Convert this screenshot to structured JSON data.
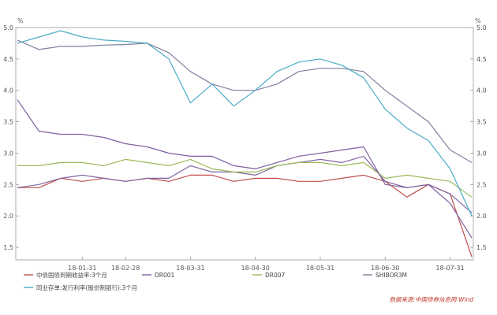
{
  "chart_data": {
    "type": "line",
    "title": "",
    "xlabel": "",
    "ylabel": "",
    "y_unit_left": "%",
    "y_unit_right": "%",
    "ylim": [
      1.3,
      5.0
    ],
    "yticks": [
      "5.0",
      "4.5",
      "4.0",
      "3.5",
      "3.0",
      "2.5",
      "2.0",
      "1.5"
    ],
    "x_tick_labels": [
      "18-01-31",
      "18-02-28",
      "18-03-31",
      "18-04-30",
      "18-05-31",
      "18-06-30",
      "18-07-31"
    ],
    "x": [
      "18-01-02",
      "18-01-10",
      "18-01-20",
      "18-01-31",
      "18-02-10",
      "18-02-28",
      "18-03-10",
      "18-03-20",
      "18-03-31",
      "18-04-10",
      "18-04-20",
      "18-04-30",
      "18-05-10",
      "18-05-20",
      "18-05-31",
      "18-06-10",
      "18-06-20",
      "18-06-30",
      "18-07-10",
      "18-07-20",
      "18-07-31",
      "18-08-10"
    ],
    "series": [
      {
        "name": "中债国债到期收益率:3个月",
        "color": "#c0504d",
        "values": [
          2.45,
          2.45,
          2.6,
          2.55,
          2.6,
          2.55,
          2.6,
          2.55,
          2.65,
          2.65,
          2.55,
          2.6,
          2.6,
          2.55,
          2.55,
          2.6,
          2.65,
          2.55,
          2.3,
          2.5,
          2.35,
          1.35
        ]
      },
      {
        "name": "DR001",
        "color": "#8064a2",
        "values": [
          2.45,
          2.5,
          2.6,
          2.65,
          2.6,
          2.55,
          2.6,
          2.6,
          2.8,
          2.7,
          2.7,
          2.65,
          2.8,
          2.85,
          2.9,
          2.85,
          2.95,
          2.55,
          2.45,
          2.5,
          2.35,
          2.05
        ]
      },
      {
        "name": "DR007",
        "color": "#9bbb59",
        "values": [
          2.8,
          2.8,
          2.85,
          2.85,
          2.8,
          2.9,
          2.85,
          2.8,
          2.9,
          2.75,
          2.7,
          2.7,
          2.8,
          2.85,
          2.85,
          2.8,
          2.85,
          2.6,
          2.65,
          2.6,
          2.55,
          2.3
        ]
      },
      {
        "name": "SHIBOR3M",
        "color": "#7f7f9f",
        "values": [
          4.8,
          4.65,
          4.7,
          4.7,
          4.72,
          4.73,
          4.75,
          4.6,
          4.3,
          4.1,
          4.0,
          4.0,
          4.1,
          4.3,
          4.35,
          4.35,
          4.3,
          4.0,
          3.75,
          3.5,
          3.05,
          2.85
        ]
      },
      {
        "name": "同业存单:发行利率(股份制银行):3个月",
        "color": "#4bacc6",
        "values": [
          4.75,
          4.85,
          4.95,
          4.85,
          4.8,
          4.78,
          4.75,
          4.5,
          3.8,
          4.1,
          3.75,
          4.0,
          4.3,
          4.45,
          4.5,
          4.4,
          4.2,
          3.7,
          3.4,
          3.2,
          2.75,
          2.0
        ]
      },
      {
        "name": "",
        "color": "#7f5f9f",
        "values": [
          3.85,
          3.35,
          3.3,
          3.3,
          3.25,
          3.15,
          3.1,
          3.0,
          2.95,
          2.95,
          2.8,
          2.75,
          2.85,
          2.95,
          3.0,
          3.05,
          3.1,
          2.5,
          2.45,
          2.5,
          2.2,
          1.65
        ]
      }
    ],
    "legend": {
      "placement": "bottom",
      "items": [
        "中债国债到期收益率:3个月",
        "DR001",
        "DR007",
        "SHIBOR3M",
        "同业存单:发行利率(股份制银行):3个月"
      ]
    },
    "grid": false
  },
  "source": "数据来源:中国债券信息网 Wind"
}
